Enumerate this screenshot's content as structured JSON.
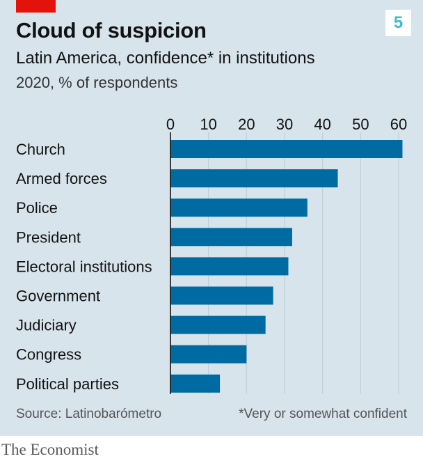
{
  "header": {
    "title": "Cloud of suspicion",
    "subtitle": "Latin America, confidence* in institutions",
    "unit": "2020, % of respondents",
    "chart_number": "5"
  },
  "footer": {
    "source": "Source: Latinobarómetro",
    "footnote": "*Very or somewhat confident",
    "brand": "The Economist"
  },
  "colors": {
    "panel": "#d7e4ec",
    "bar": "#006ba2",
    "accent_red": "#e3120b",
    "gridline": "#bfcfd9"
  },
  "chart_data": {
    "type": "bar",
    "orientation": "horizontal",
    "title": "Cloud of suspicion",
    "subtitle": "Latin America, confidence* in institutions",
    "xlabel": "2020, % of respondents",
    "ylabel": "",
    "categories": [
      "Church",
      "Armed forces",
      "Police",
      "President",
      "Electoral institutions",
      "Government",
      "Judiciary",
      "Congress",
      "Political parties"
    ],
    "values": [
      61,
      44,
      36,
      32,
      31,
      27,
      25,
      20,
      13
    ],
    "xlim": [
      0,
      62
    ],
    "ticks": [
      0,
      10,
      20,
      30,
      40,
      50,
      60
    ],
    "tick_position": "top",
    "grid": true
  }
}
